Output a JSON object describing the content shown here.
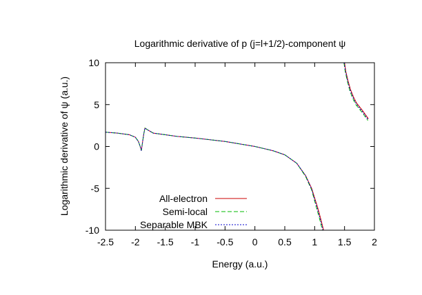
{
  "chart_data": {
    "type": "line",
    "title": "Logarithmic derivative of p (j=l+1/2)-component ψ",
    "xlabel": "Energy (a.u.)",
    "ylabel": "Logarithmic derivative of ψ (a.u.)",
    "xlim": [
      -2.5,
      2
    ],
    "ylim": [
      -10,
      10
    ],
    "xticks": [
      -2.5,
      -2,
      -1.5,
      -1,
      -0.5,
      0,
      0.5,
      1,
      1.5,
      2
    ],
    "xtick_labels": [
      "-2.5",
      "-2",
      "-1.5",
      "-1",
      "-0.5",
      "0",
      "0.5",
      "1",
      "1.5",
      "2"
    ],
    "yticks": [
      -10,
      -5,
      0,
      5,
      10
    ],
    "ytick_labels": [
      "-10",
      "-5",
      "0",
      "5",
      "10"
    ],
    "grid": false,
    "legend_position": "bottom-left",
    "series": [
      {
        "name": "All-electron",
        "color": "#cc0000",
        "dash": "solid",
        "branches": [
          {
            "x": [
              -2.5,
              -2.3,
              -2.1,
              -2.0,
              -1.95,
              -1.92,
              -1.9,
              -1.88,
              -1.86,
              -1.84,
              -1.8,
              -1.7,
              -1.5,
              -1.3,
              -1.0,
              -0.5,
              0.0,
              0.3,
              0.5,
              0.7,
              0.85,
              0.95,
              1.05,
              1.1,
              1.15
            ],
            "y": [
              1.7,
              1.6,
              1.4,
              1.1,
              0.6,
              0.0,
              -0.5,
              0.5,
              1.5,
              2.2,
              2.0,
              1.6,
              1.4,
              1.2,
              1.0,
              0.6,
              0.0,
              -0.5,
              -1.0,
              -2.0,
              -3.5,
              -5.0,
              -7.3,
              -8.6,
              -10
            ]
          },
          {
            "x": [
              1.5,
              1.52,
              1.56,
              1.6,
              1.65,
              1.7,
              1.8,
              1.9
            ],
            "y": [
              10,
              9.0,
              7.8,
              6.8,
              5.9,
              5.2,
              4.3,
              3.3
            ]
          }
        ]
      },
      {
        "name": "Semi-local",
        "color": "#00bb00",
        "dash": "6,3",
        "branches": [
          {
            "x": [
              -2.5,
              -2.3,
              -2.1,
              -2.0,
              -1.95,
              -1.92,
              -1.9,
              -1.88,
              -1.86,
              -1.84,
              -1.8,
              -1.7,
              -1.5,
              -1.3,
              -1.0,
              -0.5,
              0.0,
              0.3,
              0.5,
              0.7,
              0.85,
              0.95,
              1.03,
              1.08,
              1.13
            ],
            "y": [
              1.7,
              1.6,
              1.4,
              1.1,
              0.6,
              0.0,
              -0.5,
              0.5,
              1.5,
              2.2,
              2.0,
              1.6,
              1.4,
              1.2,
              1.0,
              0.6,
              0.0,
              -0.5,
              -1.0,
              -2.0,
              -3.6,
              -5.2,
              -7.3,
              -8.6,
              -10
            ]
          },
          {
            "x": [
              1.49,
              1.51,
              1.55,
              1.59,
              1.64,
              1.69,
              1.79,
              1.89
            ],
            "y": [
              10,
              9.0,
              7.7,
              6.6,
              5.7,
              5.0,
              4.1,
              3.1
            ]
          }
        ]
      },
      {
        "name": "Separable MBK",
        "color": "#0000cc",
        "dash": "2,2",
        "branches": [
          {
            "x": [
              -2.5,
              -2.3,
              -2.1,
              -2.0,
              -1.95,
              -1.92,
              -1.9,
              -1.88,
              -1.86,
              -1.84,
              -1.8,
              -1.7,
              -1.5,
              -1.3,
              -1.0,
              -0.5,
              0.0,
              0.3,
              0.5,
              0.7,
              0.85,
              0.95,
              1.04,
              1.09,
              1.14
            ],
            "y": [
              1.7,
              1.6,
              1.4,
              1.1,
              0.6,
              0.0,
              -0.5,
              0.5,
              1.5,
              2.2,
              2.0,
              1.6,
              1.4,
              1.2,
              1.0,
              0.6,
              0.0,
              -0.5,
              -1.0,
              -2.0,
              -3.5,
              -5.1,
              -7.3,
              -8.6,
              -10
            ]
          },
          {
            "x": [
              1.495,
              1.515,
              1.555,
              1.595,
              1.645,
              1.695,
              1.795,
              1.895
            ],
            "y": [
              10,
              9.0,
              7.75,
              6.7,
              5.8,
              5.1,
              4.2,
              3.2
            ]
          }
        ]
      }
    ]
  }
}
